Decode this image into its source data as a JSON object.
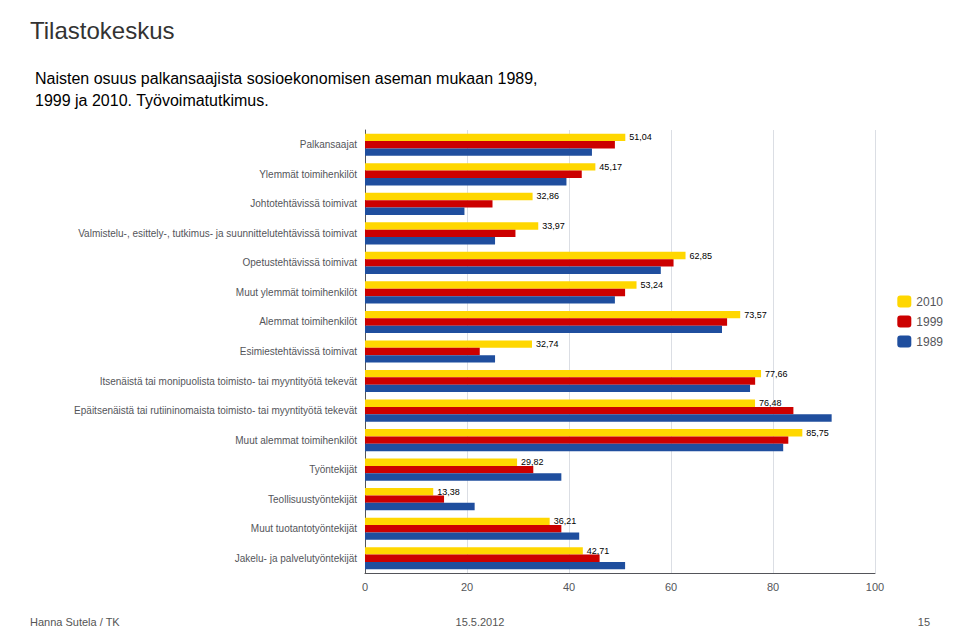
{
  "chart_data": {
    "type": "bar",
    "orientation": "horizontal",
    "title": "Naisten osuus palkansaajista sosioekonomisen aseman mukaan 1989,\n1999 ja 2010. Työvoimatutkimus.",
    "annotations": [
      "Tilastokeskus",
      "Hanna Sutela / TK",
      "15.5.2012",
      "15"
    ],
    "categories": [
      "Palkansaajat",
      "Ylemmät toimihenkilöt",
      "Johtotehtävissä toimivat",
      "Valmistelu-, esittely-, tutkimus- ja suunnittelutehtävissä toimivat",
      "Opetustehtävissä toimivat",
      "Muut ylemmät toimihenkilöt",
      "Alemmat toimihenkilöt",
      "Esimiestehtävissä toimivat",
      "Itsenäistä tai monipuolista toimisto- tai myyntityötä tekevät",
      "Epäitsenäistä tai rutiininomaista toimisto- tai myyntityötä tekevät",
      "Muut alemmat toimihenkilöt",
      "Työntekijät",
      "Teollisuustyöntekijät",
      "Muut tuotantotyöntekijät",
      "Jakelu- ja palvelutyöntekijät"
    ],
    "series": [
      {
        "name": "2010",
        "color": "#FFD700",
        "values": [
          51.04,
          45.17,
          32.86,
          33.97,
          62.85,
          53.24,
          73.57,
          32.74,
          77.66,
          76.48,
          85.75,
          29.82,
          13.38,
          36.21,
          42.71
        ],
        "value_labels": [
          "51,04",
          "45,17",
          "32,86",
          "33,97",
          "62,85",
          "53,24",
          "73,57",
          "32,74",
          "77,66",
          "76,48",
          "85,75",
          "29,82",
          "13,38",
          "36,21",
          "42,71"
        ]
      },
      {
        "name": "1999",
        "color": "#CC0000",
        "values": [
          49.0,
          42.5,
          25.0,
          29.5,
          60.5,
          51.0,
          71.0,
          22.5,
          76.5,
          84.0,
          83.0,
          33.0,
          15.5,
          38.5,
          46.0
        ]
      },
      {
        "name": "1989",
        "color": "#1F4E9E",
        "values": [
          44.5,
          39.5,
          19.5,
          25.5,
          58.0,
          49.0,
          70.0,
          25.5,
          75.5,
          91.5,
          82.0,
          38.5,
          21.5,
          42.0,
          51.0
        ]
      }
    ],
    "xlim": [
      0,
      100
    ],
    "xticks": [
      0,
      20,
      40,
      60,
      80,
      100
    ],
    "grid": true,
    "legend": "right"
  }
}
